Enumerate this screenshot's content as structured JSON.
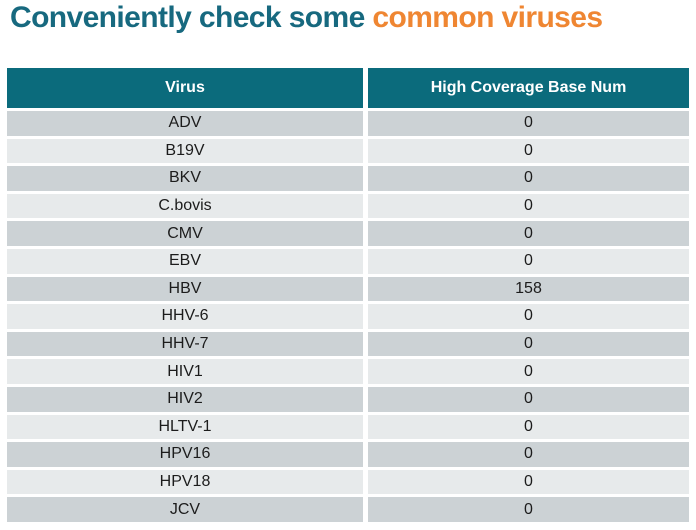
{
  "title": {
    "part1": "Conveniently check some ",
    "part2": "common viruses"
  },
  "colors": {
    "title_teal": "#17697f",
    "title_orange": "#ef8632",
    "header_bg": "#0b6b7c",
    "header_text": "#ffffff",
    "row_dark": "#ccd2d5",
    "row_light": "#e7eaeb",
    "cell_text": "#1c1c1c"
  },
  "table": {
    "columns": [
      "Virus",
      "High Coverage Base Num"
    ],
    "rows": [
      [
        "ADV",
        "0"
      ],
      [
        "B19V",
        "0"
      ],
      [
        "BKV",
        "0"
      ],
      [
        "C.bovis",
        "0"
      ],
      [
        "CMV",
        "0"
      ],
      [
        "EBV",
        "0"
      ],
      [
        "HBV",
        "158"
      ],
      [
        "HHV-6",
        "0"
      ],
      [
        "HHV-7",
        "0"
      ],
      [
        "HIV1",
        "0"
      ],
      [
        "HIV2",
        "0"
      ],
      [
        "HLTV-1",
        "0"
      ],
      [
        "HPV16",
        "0"
      ],
      [
        "HPV18",
        "0"
      ],
      [
        "JCV",
        "0"
      ]
    ]
  }
}
